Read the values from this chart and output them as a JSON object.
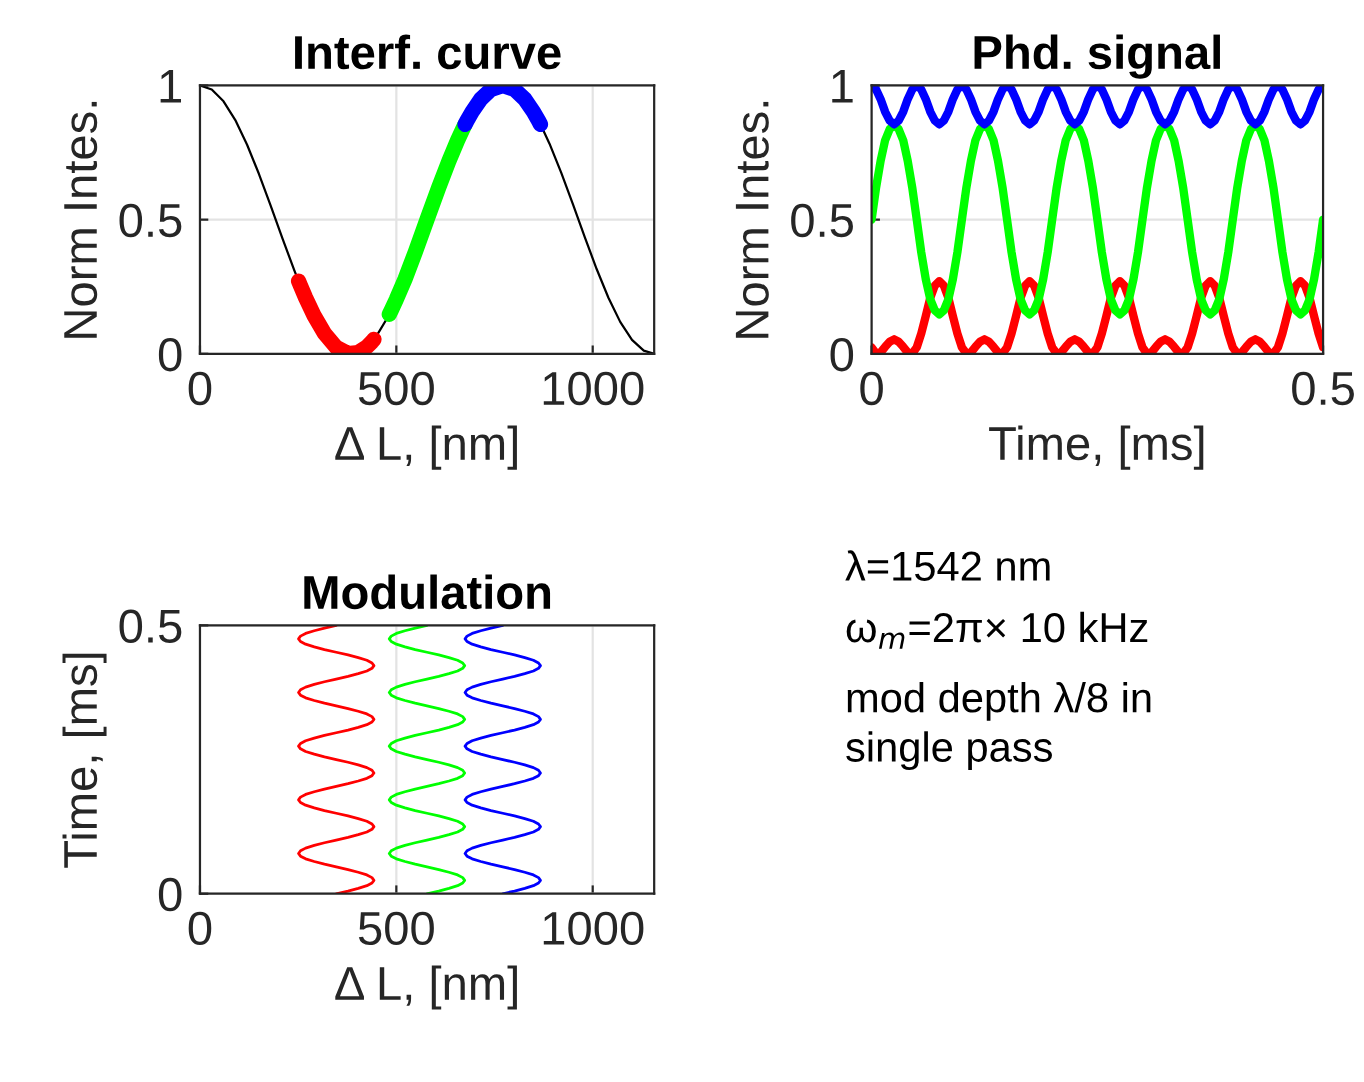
{
  "chart_data": [
    {
      "type": "line",
      "title": "Interf. curve",
      "xlabel": "Δ L, [nm]",
      "ylabel": "Norm Intes.",
      "xlim": [
        0,
        1156.5
      ],
      "xticks": [
        0,
        500,
        1000
      ],
      "ylim": [
        0,
        1
      ],
      "yticks": [
        0,
        0.5,
        1
      ],
      "grid": true,
      "marker": "none",
      "line_style": "solid",
      "series": [
        {
          "color": "#000000",
          "x": [
            0,
            30,
            60,
            90,
            120,
            150,
            180,
            210,
            240,
            248,
            270,
            300,
            330,
            360,
            385.5,
            420,
            450,
            480,
            510,
            540,
            570,
            600,
            630,
            660,
            690,
            720,
            750,
            771,
            800,
            830,
            860,
            870,
            890,
            920,
            950,
            980,
            1010,
            1040,
            1070,
            1100,
            1130,
            1156.5
          ],
          "values": [
            1,
            0.985,
            0.941,
            0.871,
            0.779,
            0.671,
            0.552,
            0.43,
            0.312,
            0.282,
            null,
            null,
            null,
            null,
            null,
            null,
            0.068,
            0.141,
            null,
            null,
            null,
            null,
            null,
            null,
            null,
            null,
            null,
            null,
            null,
            null,
            null,
            0.846,
            0.783,
            0.674,
            0.556,
            0.434,
            0.316,
            0.209,
            0.119,
            0.052,
            0.012,
            0
          ]
        },
        {
          "color": "#ff0000",
          "x": [
            251,
            256,
            269,
            291,
            317,
            347,
            377,
            403,
            425,
            438,
            443
          ],
          "values": [
            0.271,
            0.254,
            0.209,
            0.141,
            0.076,
            0.024,
            0.001,
            0.005,
            0.026,
            0.045,
            0.054
          ]
        },
        {
          "color": "#00ff00",
          "x": [
            482,
            487,
            500,
            522,
            548,
            578,
            608,
            634,
            656,
            669,
            674
          ],
          "values": [
            0.147,
            0.162,
            0.203,
            0.278,
            0.378,
            0.5,
            0.62,
            0.719,
            0.796,
            0.837,
            0.852
          ]
        },
        {
          "color": "#0000ff",
          "x": [
            675,
            680,
            693,
            715,
            741,
            771,
            801,
            827,
            849,
            862,
            867
          ],
          "values": [
            0.855,
            0.869,
            0.902,
            0.949,
            0.985,
            1,
            0.985,
            0.949,
            0.902,
            0.869,
            0.855
          ]
        }
      ]
    },
    {
      "type": "line",
      "title": "Phd. signal",
      "xlabel": "Time, [ms]",
      "ylabel": "Norm Intes.",
      "xlim": [
        0,
        0.5
      ],
      "xticks": [
        0,
        0.5
      ],
      "ylim": [
        0,
        1
      ],
      "yticks": [
        0,
        0.5,
        1
      ],
      "grid": true,
      "marker": "none",
      "line_style": "solid",
      "x": [
        0,
        0.005,
        0.01,
        0.015,
        0.02,
        0.025,
        0.03,
        0.035,
        0.04,
        0.045,
        0.05,
        0.055,
        0.06,
        0.065,
        0.07,
        0.075,
        0.08,
        0.085,
        0.09,
        0.095,
        0.1,
        0.105,
        0.11,
        0.115,
        0.12,
        0.125,
        0.13,
        0.135,
        0.14,
        0.145,
        0.15,
        0.155,
        0.16,
        0.165,
        0.17,
        0.175,
        0.18,
        0.185,
        0.19,
        0.195,
        0.2,
        0.205,
        0.21,
        0.215,
        0.22,
        0.225,
        0.23,
        0.235,
        0.24,
        0.245,
        0.25,
        0.255,
        0.26,
        0.265,
        0.27,
        0.275,
        0.28,
        0.285,
        0.29,
        0.295,
        0.3,
        0.305,
        0.31,
        0.315,
        0.32,
        0.325,
        0.33,
        0.335,
        0.34,
        0.345,
        0.35,
        0.355,
        0.36,
        0.365,
        0.37,
        0.375,
        0.38,
        0.385,
        0.39,
        0.395,
        0.4,
        0.405,
        0.41,
        0.415,
        0.42,
        0.425,
        0.43,
        0.435,
        0.44,
        0.445,
        0.45,
        0.455,
        0.46,
        0.465,
        0.47,
        0.475,
        0.48,
        0.485,
        0.49,
        0.495,
        0.5
      ],
      "series": [
        {
          "color": "#ff0000",
          "values": [
            0.024,
            0.001,
            0.005,
            0.026,
            0.045,
            0.054,
            0.045,
            0.026,
            0.005,
            0.001,
            0.024,
            0.076,
            0.141,
            0.209,
            0.254,
            0.271,
            0.254,
            0.209,
            0.141,
            0.076,
            0.024,
            0.001,
            0.005,
            0.026,
            0.045,
            0.054,
            0.045,
            0.026,
            0.005,
            0.001,
            0.024,
            0.076,
            0.141,
            0.209,
            0.254,
            0.271,
            0.254,
            0.209,
            0.141,
            0.076,
            0.024,
            0.001,
            0.005,
            0.026,
            0.045,
            0.054,
            0.045,
            0.026,
            0.005,
            0.001,
            0.024,
            0.076,
            0.141,
            0.209,
            0.254,
            0.271,
            0.254,
            0.209,
            0.141,
            0.076,
            0.024,
            0.001,
            0.005,
            0.026,
            0.045,
            0.054,
            0.045,
            0.026,
            0.005,
            0.001,
            0.024,
            0.076,
            0.141,
            0.209,
            0.254,
            0.271,
            0.254,
            0.209,
            0.141,
            0.076,
            0.024,
            0.001,
            0.005,
            0.026,
            0.045,
            0.054,
            0.045,
            0.026,
            0.005,
            0.001,
            0.024,
            0.076,
            0.141,
            0.209,
            0.254,
            0.271,
            0.254,
            0.209,
            0.141,
            0.076,
            0.024
          ]
        },
        {
          "color": "#00ff00",
          "values": [
            0.5,
            0.62,
            0.719,
            0.796,
            0.837,
            0.852,
            0.837,
            0.796,
            0.719,
            0.62,
            0.5,
            0.378,
            0.278,
            0.203,
            0.162,
            0.147,
            0.162,
            0.203,
            0.278,
            0.378,
            0.5,
            0.62,
            0.719,
            0.796,
            0.837,
            0.852,
            0.837,
            0.796,
            0.719,
            0.62,
            0.5,
            0.378,
            0.278,
            0.203,
            0.162,
            0.147,
            0.162,
            0.203,
            0.278,
            0.378,
            0.5,
            0.62,
            0.719,
            0.796,
            0.837,
            0.852,
            0.837,
            0.796,
            0.719,
            0.62,
            0.5,
            0.378,
            0.278,
            0.203,
            0.162,
            0.147,
            0.162,
            0.203,
            0.278,
            0.378,
            0.5,
            0.62,
            0.719,
            0.796,
            0.837,
            0.852,
            0.837,
            0.796,
            0.719,
            0.62,
            0.5,
            0.378,
            0.278,
            0.203,
            0.162,
            0.147,
            0.162,
            0.203,
            0.278,
            0.378,
            0.5,
            0.62,
            0.719,
            0.796,
            0.837,
            0.852,
            0.837,
            0.796,
            0.719,
            0.62,
            0.5,
            0.378,
            0.278,
            0.203,
            0.162,
            0.147,
            0.162,
            0.203,
            0.278,
            0.378,
            0.5
          ]
        },
        {
          "color": "#0000ff",
          "values": [
            1,
            0.985,
            0.949,
            0.902,
            0.869,
            0.855,
            0.869,
            0.902,
            0.949,
            0.985,
            1,
            0.985,
            0.949,
            0.902,
            0.869,
            0.855,
            0.869,
            0.902,
            0.949,
            0.985,
            1,
            0.985,
            0.949,
            0.902,
            0.869,
            0.855,
            0.869,
            0.902,
            0.949,
            0.985,
            1,
            0.985,
            0.949,
            0.902,
            0.869,
            0.855,
            0.869,
            0.902,
            0.949,
            0.985,
            1,
            0.985,
            0.949,
            0.902,
            0.869,
            0.855,
            0.869,
            0.902,
            0.949,
            0.985,
            1,
            0.985,
            0.949,
            0.902,
            0.869,
            0.855,
            0.869,
            0.902,
            0.949,
            0.985,
            1,
            0.985,
            0.949,
            0.902,
            0.869,
            0.855,
            0.869,
            0.902,
            0.949,
            0.985,
            1,
            0.985,
            0.949,
            0.902,
            0.869,
            0.855,
            0.869,
            0.902,
            0.949,
            0.985,
            1,
            0.985,
            0.949,
            0.902,
            0.869,
            0.855,
            0.869,
            0.902,
            0.949,
            0.985,
            1,
            0.985,
            0.949,
            0.902,
            0.869,
            0.855,
            0.869,
            0.902,
            0.949,
            0.985,
            1
          ]
        }
      ]
    },
    {
      "type": "line",
      "title": "Modulation",
      "xlabel": "Δ L, [nm]",
      "ylabel": "Time, [ms]",
      "xlim": [
        0,
        1156.5
      ],
      "xticks": [
        0,
        500,
        1000
      ],
      "ylim": [
        0,
        0.5
      ],
      "yticks": [
        0,
        0.5
      ],
      "grid": true,
      "marker": "none",
      "line_style": "solid",
      "series": [
        {
          "color": "#ff0000",
          "x": [
            347,
            377,
            403,
            425,
            438,
            443,
            438,
            425,
            403,
            377,
            347,
            317,
            291,
            269,
            256,
            251,
            256,
            269,
            291,
            317,
            347,
            377,
            403,
            425,
            438,
            443,
            438,
            425,
            403,
            377,
            347,
            317,
            291,
            269,
            256,
            251,
            256,
            269,
            291,
            317,
            347,
            377,
            403,
            425,
            438,
            443,
            438,
            425,
            403,
            377,
            347,
            317,
            291,
            269,
            256,
            251,
            256,
            269,
            291,
            317,
            347,
            377,
            403,
            425,
            438,
            443,
            438,
            425,
            403,
            377,
            347,
            317,
            291,
            269,
            256,
            251,
            256,
            269,
            291,
            317,
            347,
            377,
            403,
            425,
            438,
            443,
            438,
            425,
            403,
            377,
            347,
            317,
            291,
            269,
            256,
            251,
            256,
            269,
            291,
            317,
            347
          ],
          "values": [
            0,
            0.005,
            0.01,
            0.015,
            0.02,
            0.025,
            0.03,
            0.035,
            0.04,
            0.045,
            0.05,
            0.055,
            0.06,
            0.065,
            0.07,
            0.075,
            0.08,
            0.085,
            0.09,
            0.095,
            0.1,
            0.105,
            0.11,
            0.115,
            0.12,
            0.125,
            0.13,
            0.135,
            0.14,
            0.145,
            0.15,
            0.155,
            0.16,
            0.165,
            0.17,
            0.175,
            0.18,
            0.185,
            0.19,
            0.195,
            0.2,
            0.205,
            0.21,
            0.215,
            0.22,
            0.225,
            0.23,
            0.235,
            0.24,
            0.245,
            0.25,
            0.255,
            0.26,
            0.265,
            0.27,
            0.275,
            0.28,
            0.285,
            0.29,
            0.295,
            0.3,
            0.305,
            0.31,
            0.315,
            0.32,
            0.325,
            0.33,
            0.335,
            0.34,
            0.345,
            0.35,
            0.355,
            0.36,
            0.365,
            0.37,
            0.375,
            0.38,
            0.385,
            0.39,
            0.395,
            0.4,
            0.405,
            0.41,
            0.415,
            0.42,
            0.425,
            0.43,
            0.435,
            0.44,
            0.445,
            0.45,
            0.455,
            0.46,
            0.465,
            0.47,
            0.475,
            0.48,
            0.485,
            0.49,
            0.495,
            0.5
          ]
        },
        {
          "color": "#00ff00",
          "x": [
            578,
            608,
            634,
            656,
            669,
            674,
            669,
            656,
            634,
            608,
            578,
            548,
            522,
            500,
            487,
            482,
            487,
            500,
            522,
            548,
            578,
            608,
            634,
            656,
            669,
            674,
            669,
            656,
            634,
            608,
            578,
            548,
            522,
            500,
            487,
            482,
            487,
            500,
            522,
            548,
            578,
            608,
            634,
            656,
            669,
            674,
            669,
            656,
            634,
            608,
            578,
            548,
            522,
            500,
            487,
            482,
            487,
            500,
            522,
            548,
            578,
            608,
            634,
            656,
            669,
            674,
            669,
            656,
            634,
            608,
            578,
            548,
            522,
            500,
            487,
            482,
            487,
            500,
            522,
            548,
            578,
            608,
            634,
            656,
            669,
            674,
            669,
            656,
            634,
            608,
            578,
            548,
            522,
            500,
            487,
            482,
            487,
            500,
            522,
            548,
            578
          ],
          "values": [
            0,
            0.005,
            0.01,
            0.015,
            0.02,
            0.025,
            0.03,
            0.035,
            0.04,
            0.045,
            0.05,
            0.055,
            0.06,
            0.065,
            0.07,
            0.075,
            0.08,
            0.085,
            0.09,
            0.095,
            0.1,
            0.105,
            0.11,
            0.115,
            0.12,
            0.125,
            0.13,
            0.135,
            0.14,
            0.145,
            0.15,
            0.155,
            0.16,
            0.165,
            0.17,
            0.175,
            0.18,
            0.185,
            0.19,
            0.195,
            0.2,
            0.205,
            0.21,
            0.215,
            0.22,
            0.225,
            0.23,
            0.235,
            0.24,
            0.245,
            0.25,
            0.255,
            0.26,
            0.265,
            0.27,
            0.275,
            0.28,
            0.285,
            0.29,
            0.295,
            0.3,
            0.305,
            0.31,
            0.315,
            0.32,
            0.325,
            0.33,
            0.335,
            0.34,
            0.345,
            0.35,
            0.355,
            0.36,
            0.365,
            0.37,
            0.375,
            0.38,
            0.385,
            0.39,
            0.395,
            0.4,
            0.405,
            0.41,
            0.415,
            0.42,
            0.425,
            0.43,
            0.435,
            0.44,
            0.445,
            0.45,
            0.455,
            0.46,
            0.465,
            0.47,
            0.475,
            0.48,
            0.485,
            0.49,
            0.495,
            0.5
          ]
        },
        {
          "color": "#0000ff",
          "x": [
            771,
            801,
            827,
            849,
            862,
            867,
            862,
            849,
            827,
            801,
            771,
            741,
            715,
            693,
            680,
            675,
            680,
            693,
            715,
            741,
            771,
            801,
            827,
            849,
            862,
            867,
            862,
            849,
            827,
            801,
            771,
            741,
            715,
            693,
            680,
            675,
            680,
            693,
            715,
            741,
            771,
            801,
            827,
            849,
            862,
            867,
            862,
            849,
            827,
            801,
            771,
            741,
            715,
            693,
            680,
            675,
            680,
            693,
            715,
            741,
            771,
            801,
            827,
            849,
            862,
            867,
            862,
            849,
            827,
            801,
            771,
            741,
            715,
            693,
            680,
            675,
            680,
            693,
            715,
            741,
            771,
            801,
            827,
            849,
            862,
            867,
            862,
            849,
            827,
            801,
            771,
            741,
            715,
            693,
            680,
            675,
            680,
            693,
            715,
            741,
            771
          ],
          "values": [
            0,
            0.005,
            0.01,
            0.015,
            0.02,
            0.025,
            0.03,
            0.035,
            0.04,
            0.045,
            0.05,
            0.055,
            0.06,
            0.065,
            0.07,
            0.075,
            0.08,
            0.085,
            0.09,
            0.095,
            0.1,
            0.105,
            0.11,
            0.115,
            0.12,
            0.125,
            0.13,
            0.135,
            0.14,
            0.145,
            0.15,
            0.155,
            0.16,
            0.165,
            0.17,
            0.175,
            0.18,
            0.185,
            0.19,
            0.195,
            0.2,
            0.205,
            0.21,
            0.215,
            0.22,
            0.225,
            0.23,
            0.235,
            0.24,
            0.245,
            0.25,
            0.255,
            0.26,
            0.265,
            0.27,
            0.275,
            0.28,
            0.285,
            0.29,
            0.295,
            0.3,
            0.305,
            0.31,
            0.315,
            0.32,
            0.325,
            0.33,
            0.335,
            0.34,
            0.345,
            0.35,
            0.355,
            0.36,
            0.365,
            0.37,
            0.375,
            0.38,
            0.385,
            0.39,
            0.395,
            0.4,
            0.405,
            0.41,
            0.415,
            0.42,
            0.425,
            0.43,
            0.435,
            0.44,
            0.445,
            0.45,
            0.455,
            0.46,
            0.465,
            0.47,
            0.475,
            0.48,
            0.485,
            0.49,
            0.495,
            0.5
          ]
        }
      ]
    },
    {
      "type": "other",
      "annotations": [
        "λ=1542 nm",
        "ω$_{m}$=2π× 10 kHz",
        "mod depth λ/8 in",
        "single pass"
      ]
    }
  ]
}
